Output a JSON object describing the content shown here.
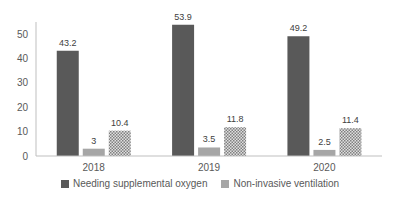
{
  "chart_data": {
    "type": "bar",
    "categories": [
      "2018",
      "2019",
      "2020"
    ],
    "series": [
      {
        "name": "Needing supplemental oxygen",
        "color": "#595959",
        "values": [
          43.2,
          53.9,
          49.2
        ]
      },
      {
        "name": "Non-invasive ventilation",
        "color": "#a6a6a6",
        "values": [
          3,
          3.5,
          2.5
        ]
      },
      {
        "color": "#808080",
        "values": [
          10.4,
          11.8,
          11.4
        ]
      }
    ],
    "ylim": [
      0,
      55
    ],
    "yticks": [
      0,
      10,
      20,
      30,
      40,
      50
    ],
    "grid": false,
    "data_labels": true
  }
}
